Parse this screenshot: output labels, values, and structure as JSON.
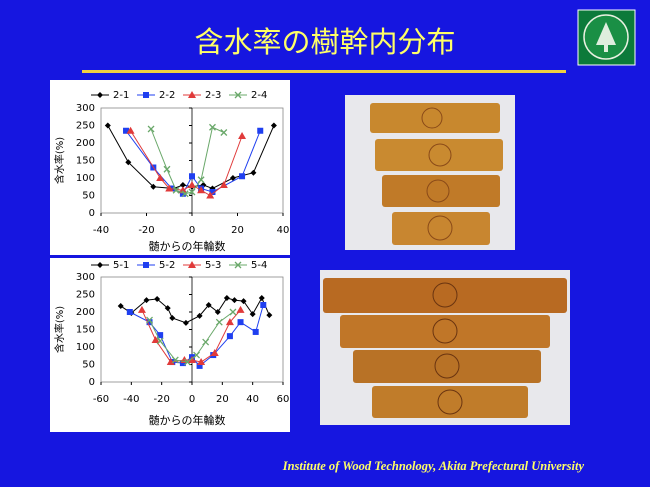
{
  "title": "含水率の樹幹内分布",
  "footer": "Institute of Wood Technology, Akita Prefectural University",
  "chart_data": [
    {
      "type": "line",
      "xlabel": "髄からの年輪数",
      "ylabel": "含水率(%)",
      "xlim": [
        -40,
        40
      ],
      "xticks": [
        -40,
        -20,
        0,
        20,
        40
      ],
      "ylim": [
        0,
        300
      ],
      "yticks": [
        0,
        50,
        100,
        150,
        200,
        250,
        300
      ],
      "legend": "top",
      "series": [
        {
          "name": "2-1",
          "color": "#000000",
          "marker": "diamond",
          "x": [
            -37,
            -28,
            -17,
            -8,
            -4,
            0,
            5,
            9,
            18,
            27,
            36
          ],
          "values": [
            250,
            145,
            75,
            70,
            80,
            75,
            80,
            70,
            100,
            115,
            250
          ]
        },
        {
          "name": "2-2",
          "color": "#1f3ff0",
          "marker": "square",
          "x": [
            -29,
            -17,
            -9,
            -4,
            0,
            4,
            9,
            22,
            30
          ],
          "values": [
            235,
            130,
            70,
            55,
            105,
            70,
            60,
            105,
            235
          ]
        },
        {
          "name": "2-3",
          "color": "#e03a3a",
          "marker": "triangle",
          "x": [
            -27,
            -14,
            -10,
            -4,
            0,
            4,
            8,
            14,
            22
          ],
          "values": [
            235,
            100,
            70,
            65,
            80,
            65,
            50,
            80,
            220
          ]
        },
        {
          "name": "2-4",
          "color": "#6aa86a",
          "marker": "x",
          "x": [
            -18,
            -11,
            -7,
            -3,
            0,
            4,
            9,
            14
          ],
          "values": [
            240,
            125,
            65,
            55,
            60,
            95,
            245,
            230
          ]
        }
      ]
    },
    {
      "type": "line",
      "xlabel": "髄からの年輪数",
      "ylabel": "含水率(%)",
      "xlim": [
        -60,
        60
      ],
      "xticks": [
        -60,
        -40,
        -20,
        0,
        20,
        40,
        60
      ],
      "ylim": [
        0,
        300
      ],
      "yticks": [
        0,
        50,
        100,
        150,
        200,
        250,
        300
      ],
      "legend": "top",
      "series": [
        {
          "name": "5-1",
          "color": "#000000",
          "marker": "diamond",
          "x": [
            -47,
            -40,
            -30,
            -23,
            -16,
            -13,
            -4,
            5,
            11,
            17,
            23,
            28,
            34,
            40,
            46,
            51
          ],
          "values": [
            217,
            197,
            234,
            237,
            211,
            183,
            169,
            189,
            220,
            200,
            240,
            234,
            231,
            194,
            240,
            191
          ]
        },
        {
          "name": "5-2",
          "color": "#1f3ff0",
          "marker": "square",
          "x": [
            -41,
            -28,
            -21,
            -13,
            -6,
            0,
            5,
            14,
            25,
            32,
            42,
            47
          ],
          "values": [
            200,
            171,
            134,
            57,
            54,
            71,
            46,
            77,
            131,
            171,
            143,
            220
          ]
        },
        {
          "name": "5-3",
          "color": "#e03a3a",
          "marker": "triangle",
          "x": [
            -33,
            -24,
            -14,
            -5,
            0,
            6,
            15,
            25,
            32
          ],
          "values": [
            206,
            120,
            57,
            63,
            63,
            57,
            83,
            171,
            206
          ]
        },
        {
          "name": "5-4",
          "color": "#6aa86a",
          "marker": "x",
          "x": [
            -28,
            -21,
            -11,
            -3,
            3,
            9,
            18,
            27
          ],
          "values": [
            177,
            117,
            63,
            57,
            77,
            114,
            171,
            200
          ]
        }
      ]
    }
  ]
}
